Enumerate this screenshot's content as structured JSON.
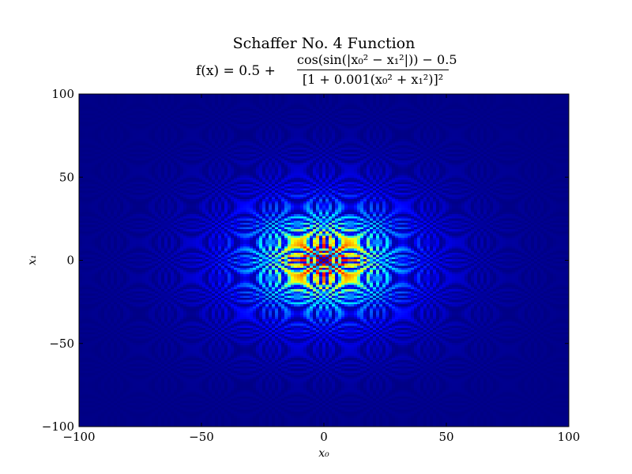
{
  "chart_data": {
    "type": "heatmap",
    "title": "Schaffer No. 4 Function",
    "subtitle_lhs": "f(x) = 0.5 +",
    "subtitle_numerator": "cos(sin(|x₀² − x₁²|)) − 0.5",
    "subtitle_denominator": "[1 + 0.001(x₀² + x₁²)]²",
    "xlabel": "x₀",
    "ylabel": "x₁",
    "xlim": [
      -100,
      100
    ],
    "ylim": [
      -100,
      100
    ],
    "xticks": [
      "−100",
      "−50",
      "0",
      "50",
      "100"
    ],
    "yticks": [
      "−100",
      "−50",
      "0",
      "50",
      "100"
    ],
    "xtick_values": [
      -100,
      -50,
      0,
      50,
      100
    ],
    "ytick_values": [
      -100,
      -50,
      0,
      50,
      100
    ],
    "function": "0.5 + (cos(sin(|x0^2 - x1^2|)) - 0.5) / (1 + 0.001*(x0^2 + x1^2))^2",
    "colormap": "jet",
    "grid": false,
    "legend": "none"
  }
}
